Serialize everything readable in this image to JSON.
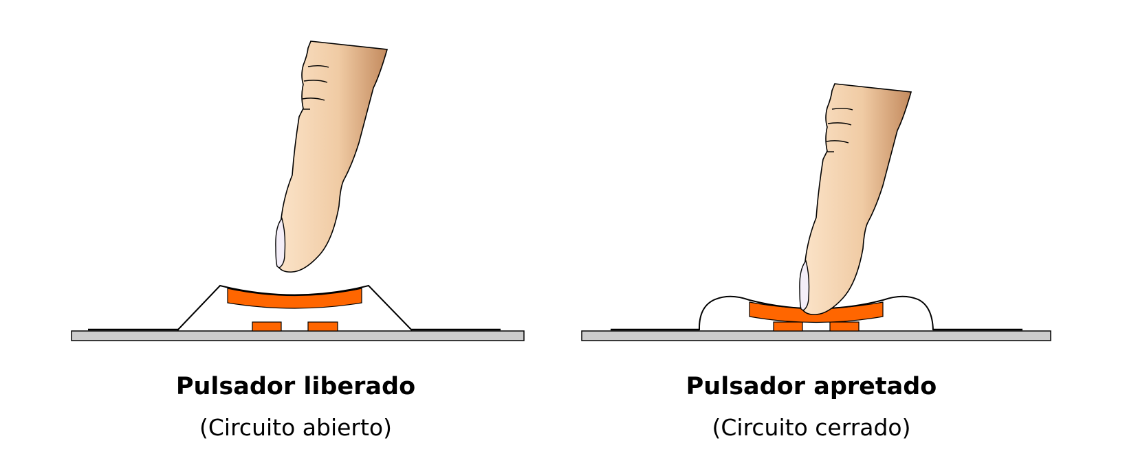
{
  "panels": [
    {
      "title": "Pulsador liberado",
      "subtitle": "(Circuito abierto)"
    },
    {
      "title": "Pulsador apretado",
      "subtitle": "(Circuito cerrado)"
    }
  ],
  "colors": {
    "contact": "#ff6600",
    "board": "#cccccc",
    "skin_light": "#fbe3c8",
    "skin_mid": "#f0cba4",
    "skin_dark": "#c38a5e",
    "nail": "#f4eef8",
    "outline": "#000000"
  }
}
